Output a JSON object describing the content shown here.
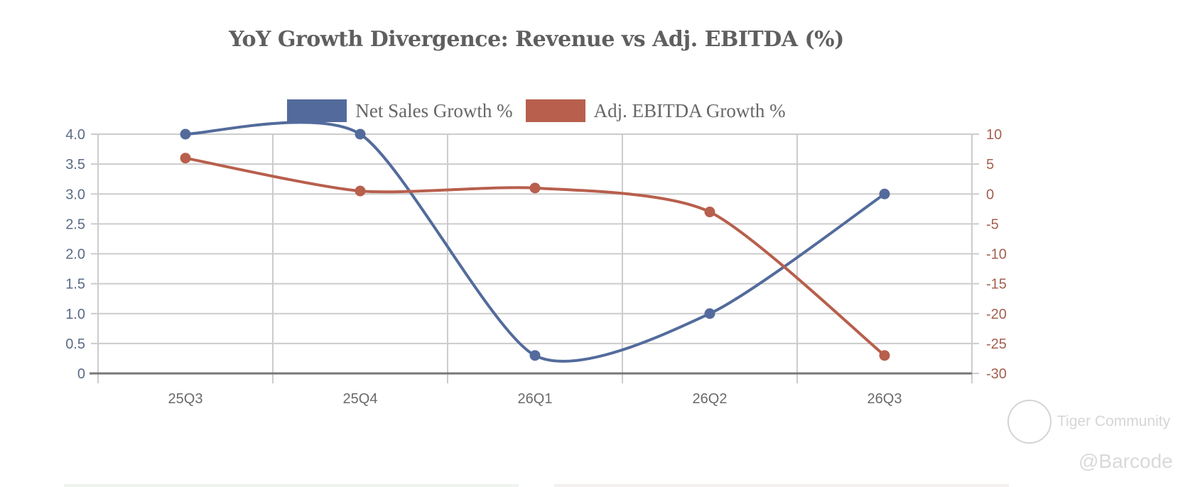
{
  "chart_data": {
    "type": "line",
    "title": "YoY Growth Divergence: Revenue vs Adj. EBITDA (%)",
    "categories": [
      "25Q3",
      "25Q4",
      "26Q1",
      "26Q2",
      "26Q3"
    ],
    "series": [
      {
        "name": "Net Sales Growth %",
        "axis": "left",
        "color": "#536b9c",
        "values": [
          4.0,
          4.0,
          0.3,
          1.0,
          3.0
        ]
      },
      {
        "name": "Adj. EBITDA Growth %",
        "axis": "right",
        "color": "#b85f4d",
        "values": [
          6.0,
          0.5,
          1.0,
          -3.0,
          -27.0
        ]
      }
    ],
    "y_left": {
      "min": 0,
      "max": 4.0,
      "ticks": [
        "0",
        "0.5",
        "1.0",
        "1.5",
        "2.0",
        "2.5",
        "3.0",
        "3.5",
        "4.0"
      ],
      "color": "#5a6b85"
    },
    "y_right": {
      "min": -30,
      "max": 10,
      "ticks": [
        "-30",
        "-25",
        "-20",
        "-15",
        "-10",
        "-5",
        "0",
        "5",
        "10"
      ],
      "color": "#a4604f"
    },
    "xlabel": "",
    "ylabel": "",
    "grid": true,
    "legend_position": "top-center"
  },
  "watermark": {
    "brand": "Tiger Community",
    "user": "@Barcode"
  }
}
